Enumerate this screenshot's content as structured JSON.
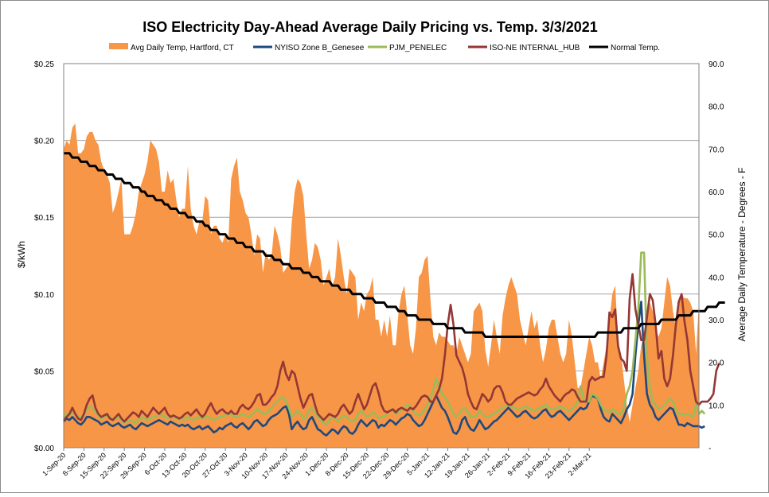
{
  "chart_data": {
    "type": "area",
    "title": "ISO Electricity Day-Ahead Average Daily Pricing vs. Temp. 3/3/2021",
    "ylabel": "$/kWh",
    "y2label": "Average Daily Temperature - Degrees - F",
    "ylim": [
      0,
      0.25
    ],
    "y2lim": [
      0,
      90
    ],
    "yticks": [
      "$0.00",
      "$0.05",
      "$0.10",
      "$0.15",
      "$0.20",
      "$0.25"
    ],
    "y2ticks": [
      "-",
      "10.0",
      "20.0",
      "30.0",
      "40.0",
      "50.0",
      "60.0",
      "70.0",
      "80.0",
      "90.0"
    ],
    "xticks": [
      "1-Sep-20",
      "8-Sep-20",
      "15-Sep-20",
      "22-Sep-20",
      "29-Sep-20",
      "6-Oct-20",
      "13-Oct-20",
      "20-Oct-20",
      "27-Oct-20",
      "3-Nov-20",
      "10-Nov-20",
      "17-Nov-20",
      "24-Nov-20",
      "1-Dec-20",
      "8-Dec-20",
      "15-Dec-20",
      "22-Dec-20",
      "29-Dec-20",
      "5-Jan-21",
      "12-Jan-21",
      "19-Jan-21",
      "26-Jan-21",
      "2-Feb-21",
      "9-Feb-21",
      "16-Feb-21",
      "23-Feb-21",
      "2-Mar-21"
    ],
    "x_start": "1-Sep-20",
    "grid": "horizontal",
    "legend_position": "top",
    "series": [
      {
        "name": "Avg Daily Temp, Hartford, CT",
        "kind": "area",
        "axis": "right",
        "color": "#F79646",
        "values": [
          70,
          72,
          71,
          75,
          76,
          69,
          69,
          70,
          73,
          74,
          74,
          72,
          71,
          67,
          65,
          64,
          62,
          55,
          57,
          60,
          63,
          50,
          50,
          50,
          52,
          55,
          60,
          62,
          64,
          67,
          72,
          71,
          70,
          67,
          60,
          60,
          65,
          62,
          63,
          58,
          54,
          56,
          56,
          66,
          56,
          52,
          50,
          53,
          53,
          59,
          58,
          50,
          52,
          52,
          49,
          48,
          50,
          48,
          63,
          66,
          68,
          60,
          58,
          55,
          54,
          50,
          45,
          50,
          49,
          41,
          46,
          44,
          45,
          52,
          50,
          47,
          41,
          42,
          43,
          53,
          60,
          63,
          62,
          59,
          50,
          42,
          44,
          48,
          47,
          44,
          38,
          40,
          42,
          38,
          40,
          49,
          45,
          40,
          36,
          42,
          41,
          40,
          30,
          34,
          32,
          36,
          37,
          40,
          30,
          30,
          26,
          30,
          26,
          31,
          24,
          24,
          32,
          36,
          38,
          31,
          24,
          22,
          28,
          40,
          41,
          44,
          45,
          35,
          26,
          24,
          27,
          26,
          26,
          25,
          24,
          24,
          22,
          26,
          24,
          22,
          20,
          22,
          32,
          33,
          34,
          32,
          23,
          19,
          24,
          30,
          26,
          22,
          31,
          35,
          38,
          40,
          38,
          36,
          30,
          27,
          24,
          28,
          32,
          28,
          30,
          24,
          20,
          23,
          28,
          30,
          30,
          26,
          22,
          20,
          22,
          30,
          26,
          20,
          14,
          14,
          18,
          22,
          26,
          24,
          20,
          20,
          16,
          20,
          24,
          30,
          36,
          38,
          25,
          22,
          16,
          10,
          6,
          10,
          14,
          18,
          24,
          26,
          30,
          34,
          32,
          28,
          26,
          28,
          34,
          40,
          38,
          32,
          28,
          34,
          36,
          35,
          35,
          34,
          32,
          22,
          34
        ]
      },
      {
        "name": "NYISO Zone B_Genesee",
        "kind": "line",
        "axis": "left",
        "color": "#1F497D",
        "values": [
          0.017,
          0.019,
          0.018,
          0.02,
          0.018,
          0.016,
          0.015,
          0.017,
          0.02,
          0.02,
          0.019,
          0.018,
          0.017,
          0.015,
          0.016,
          0.017,
          0.015,
          0.014,
          0.015,
          0.016,
          0.014,
          0.013,
          0.014,
          0.015,
          0.013,
          0.012,
          0.014,
          0.016,
          0.015,
          0.014,
          0.015,
          0.016,
          0.017,
          0.018,
          0.017,
          0.016,
          0.015,
          0.017,
          0.016,
          0.015,
          0.014,
          0.015,
          0.014,
          0.015,
          0.013,
          0.012,
          0.013,
          0.014,
          0.012,
          0.013,
          0.014,
          0.012,
          0.01,
          0.011,
          0.013,
          0.012,
          0.014,
          0.015,
          0.016,
          0.014,
          0.013,
          0.015,
          0.016,
          0.014,
          0.012,
          0.014,
          0.017,
          0.018,
          0.016,
          0.014,
          0.015,
          0.018,
          0.02,
          0.021,
          0.022,
          0.024,
          0.026,
          0.027,
          0.022,
          0.012,
          0.015,
          0.017,
          0.014,
          0.012,
          0.013,
          0.018,
          0.02,
          0.016,
          0.012,
          0.011,
          0.009,
          0.008,
          0.01,
          0.012,
          0.011,
          0.009,
          0.012,
          0.014,
          0.013,
          0.01,
          0.009,
          0.011,
          0.015,
          0.018,
          0.016,
          0.014,
          0.016,
          0.018,
          0.017,
          0.013,
          0.015,
          0.014,
          0.016,
          0.018,
          0.017,
          0.015,
          0.017,
          0.019,
          0.02,
          0.022,
          0.021,
          0.018,
          0.016,
          0.014,
          0.015,
          0.018,
          0.022,
          0.026,
          0.03,
          0.034,
          0.03,
          0.026,
          0.024,
          0.02,
          0.015,
          0.01,
          0.009,
          0.012,
          0.018,
          0.02,
          0.015,
          0.012,
          0.011,
          0.014,
          0.018,
          0.015,
          0.012,
          0.013,
          0.015,
          0.017,
          0.018,
          0.02,
          0.022,
          0.024,
          0.026,
          0.024,
          0.022,
          0.02,
          0.021,
          0.023,
          0.024,
          0.022,
          0.02,
          0.019,
          0.02,
          0.022,
          0.024,
          0.025,
          0.022,
          0.02,
          0.021,
          0.023,
          0.024,
          0.022,
          0.02,
          0.018,
          0.02,
          0.022,
          0.024,
          0.026,
          0.025,
          0.026,
          0.03,
          0.034,
          0.033,
          0.032,
          0.025,
          0.02,
          0.018,
          0.017,
          0.022,
          0.02,
          0.018,
          0.016,
          0.02,
          0.025,
          0.028,
          0.035,
          0.06,
          0.08,
          0.095,
          0.06,
          0.035,
          0.028,
          0.025,
          0.02,
          0.018,
          0.02,
          0.022,
          0.024,
          0.026,
          0.025,
          0.02,
          0.015,
          0.015,
          0.014,
          0.016,
          0.015,
          0.014,
          0.014,
          0.014,
          0.013,
          0.014
        ]
      },
      {
        "name": "PJM_PENELEC",
        "kind": "line",
        "axis": "left",
        "color": "#9BBB59",
        "values": [
          0.02,
          0.022,
          0.021,
          0.023,
          0.022,
          0.02,
          0.02,
          0.021,
          0.025,
          0.027,
          0.026,
          0.023,
          0.021,
          0.019,
          0.02,
          0.021,
          0.02,
          0.018,
          0.019,
          0.02,
          0.018,
          0.016,
          0.017,
          0.018,
          0.017,
          0.016,
          0.018,
          0.02,
          0.019,
          0.018,
          0.019,
          0.02,
          0.02,
          0.022,
          0.021,
          0.02,
          0.019,
          0.02,
          0.02,
          0.019,
          0.018,
          0.019,
          0.018,
          0.02,
          0.019,
          0.018,
          0.019,
          0.02,
          0.019,
          0.02,
          0.02,
          0.019,
          0.018,
          0.019,
          0.02,
          0.02,
          0.021,
          0.022,
          0.022,
          0.02,
          0.02,
          0.021,
          0.022,
          0.021,
          0.02,
          0.021,
          0.023,
          0.025,
          0.024,
          0.022,
          0.022,
          0.024,
          0.026,
          0.028,
          0.03,
          0.032,
          0.033,
          0.03,
          0.026,
          0.02,
          0.022,
          0.024,
          0.022,
          0.019,
          0.02,
          0.024,
          0.026,
          0.023,
          0.02,
          0.018,
          0.016,
          0.015,
          0.018,
          0.02,
          0.019,
          0.017,
          0.019,
          0.021,
          0.02,
          0.018,
          0.017,
          0.018,
          0.022,
          0.024,
          0.022,
          0.02,
          0.021,
          0.023,
          0.022,
          0.019,
          0.02,
          0.02,
          0.022,
          0.024,
          0.024,
          0.022,
          0.023,
          0.025,
          0.026,
          0.028,
          0.027,
          0.024,
          0.022,
          0.021,
          0.022,
          0.025,
          0.028,
          0.032,
          0.038,
          0.045,
          0.04,
          0.035,
          0.033,
          0.03,
          0.026,
          0.022,
          0.02,
          0.022,
          0.025,
          0.026,
          0.023,
          0.02,
          0.02,
          0.021,
          0.024,
          0.022,
          0.02,
          0.02,
          0.021,
          0.022,
          0.023,
          0.025,
          0.026,
          0.027,
          0.028,
          0.027,
          0.026,
          0.025,
          0.025,
          0.026,
          0.027,
          0.026,
          0.025,
          0.024,
          0.025,
          0.026,
          0.027,
          0.028,
          0.026,
          0.025,
          0.025,
          0.026,
          0.027,
          0.026,
          0.025,
          0.024,
          0.025,
          0.027,
          0.03,
          0.04,
          0.032,
          0.03,
          0.03,
          0.035,
          0.034,
          0.032,
          0.028,
          0.025,
          0.024,
          0.023,
          0.025,
          0.024,
          0.022,
          0.022,
          0.026,
          0.035,
          0.04,
          0.05,
          0.07,
          0.09,
          0.127,
          0.127,
          0.06,
          0.04,
          0.03,
          0.028,
          0.025,
          0.026,
          0.028,
          0.03,
          0.032,
          0.03,
          0.025,
          0.022,
          0.022,
          0.021,
          0.022,
          0.021,
          0.02,
          0.028,
          0.022,
          0.024,
          0.022
        ]
      },
      {
        "name": "ISO-NE INTERNAL_HUB",
        "kind": "line",
        "axis": "left",
        "color": "#953735",
        "values": [
          0.018,
          0.02,
          0.022,
          0.026,
          0.022,
          0.019,
          0.018,
          0.022,
          0.028,
          0.032,
          0.034,
          0.026,
          0.022,
          0.02,
          0.021,
          0.022,
          0.019,
          0.018,
          0.02,
          0.022,
          0.019,
          0.017,
          0.019,
          0.021,
          0.023,
          0.022,
          0.02,
          0.024,
          0.022,
          0.02,
          0.023,
          0.026,
          0.024,
          0.022,
          0.024,
          0.026,
          0.022,
          0.02,
          0.021,
          0.02,
          0.019,
          0.02,
          0.022,
          0.023,
          0.021,
          0.023,
          0.025,
          0.022,
          0.02,
          0.022,
          0.026,
          0.029,
          0.025,
          0.022,
          0.024,
          0.025,
          0.023,
          0.022,
          0.024,
          0.022,
          0.022,
          0.026,
          0.028,
          0.026,
          0.025,
          0.027,
          0.03,
          0.034,
          0.035,
          0.028,
          0.028,
          0.03,
          0.033,
          0.035,
          0.04,
          0.05,
          0.056,
          0.048,
          0.044,
          0.05,
          0.048,
          0.04,
          0.032,
          0.026,
          0.03,
          0.034,
          0.035,
          0.028,
          0.022,
          0.02,
          0.018,
          0.02,
          0.022,
          0.021,
          0.02,
          0.022,
          0.026,
          0.028,
          0.025,
          0.022,
          0.024,
          0.03,
          0.035,
          0.03,
          0.025,
          0.028,
          0.034,
          0.04,
          0.042,
          0.036,
          0.028,
          0.024,
          0.023,
          0.024,
          0.025,
          0.023,
          0.025,
          0.026,
          0.025,
          0.024,
          0.026,
          0.025,
          0.027,
          0.03,
          0.033,
          0.034,
          0.033,
          0.03,
          0.03,
          0.034,
          0.038,
          0.045,
          0.06,
          0.08,
          0.093,
          0.08,
          0.06,
          0.056,
          0.052,
          0.045,
          0.035,
          0.03,
          0.026,
          0.025,
          0.03,
          0.035,
          0.033,
          0.03,
          0.032,
          0.038,
          0.04,
          0.04,
          0.036,
          0.03,
          0.028,
          0.028,
          0.03,
          0.032,
          0.033,
          0.034,
          0.035,
          0.036,
          0.035,
          0.034,
          0.035,
          0.038,
          0.04,
          0.045,
          0.04,
          0.037,
          0.034,
          0.032,
          0.03,
          0.033,
          0.035,
          0.036,
          0.038,
          0.037,
          0.033,
          0.03,
          0.03,
          0.03,
          0.043,
          0.046,
          0.044,
          0.045,
          0.046,
          0.046,
          0.06,
          0.088,
          0.085,
          0.09,
          0.066,
          0.058,
          0.056,
          0.05,
          0.097,
          0.113,
          0.09,
          0.08,
          0.07,
          0.07,
          0.085,
          0.1,
          0.096,
          0.08,
          0.058,
          0.063,
          0.045,
          0.04,
          0.045,
          0.06,
          0.08,
          0.095,
          0.1,
          0.082,
          0.07,
          0.05,
          0.04,
          0.03,
          0.028,
          0.03,
          0.03,
          0.03,
          0.032,
          0.035,
          0.05,
          0.055
        ]
      },
      {
        "name": "Normal Temp.",
        "kind": "line",
        "axis": "right",
        "color": "#000000",
        "values": [
          69,
          69,
          69,
          68,
          68,
          68,
          67,
          67,
          67,
          66,
          66,
          66,
          65,
          65,
          65,
          64,
          64,
          64,
          63,
          63,
          63,
          62,
          62,
          62,
          61,
          61,
          61,
          60,
          60,
          59,
          59,
          59,
          58,
          58,
          58,
          57,
          57,
          56,
          56,
          56,
          55,
          55,
          55,
          54,
          54,
          54,
          53,
          53,
          53,
          52,
          52,
          51,
          51,
          51,
          50,
          50,
          50,
          49,
          49,
          49,
          48,
          48,
          48,
          47,
          47,
          47,
          46,
          46,
          46,
          46,
          45,
          45,
          45,
          44,
          44,
          44,
          43,
          43,
          43,
          42,
          42,
          42,
          42,
          41,
          41,
          41,
          40,
          40,
          40,
          39,
          39,
          39,
          39,
          38,
          38,
          38,
          37,
          37,
          37,
          37,
          36,
          36,
          36,
          36,
          35,
          35,
          35,
          35,
          34,
          34,
          34,
          34,
          33,
          33,
          33,
          33,
          32,
          32,
          32,
          31,
          31,
          31,
          31,
          30,
          30,
          30,
          30,
          30,
          29,
          29,
          29,
          29,
          29,
          28,
          28,
          28,
          28,
          28,
          28,
          27,
          27,
          27,
          27,
          27,
          27,
          27,
          26,
          26,
          26,
          26,
          26,
          26,
          26,
          26,
          26,
          26,
          26,
          26,
          26,
          26,
          26,
          26,
          26,
          26,
          26,
          26,
          26,
          26,
          26,
          26,
          26,
          26,
          26,
          26,
          26,
          26,
          26,
          26,
          26,
          26,
          26,
          26,
          26,
          26,
          26,
          27,
          27,
          27,
          27,
          27,
          27,
          27,
          27,
          27,
          28,
          28,
          28,
          28,
          28,
          28,
          29,
          29,
          29,
          29,
          29,
          29,
          29,
          30,
          30,
          30,
          30,
          30,
          30,
          31,
          31,
          31,
          31,
          31,
          32,
          32,
          32,
          32,
          32,
          33,
          33,
          33,
          33,
          34,
          34,
          34
        ]
      }
    ]
  }
}
